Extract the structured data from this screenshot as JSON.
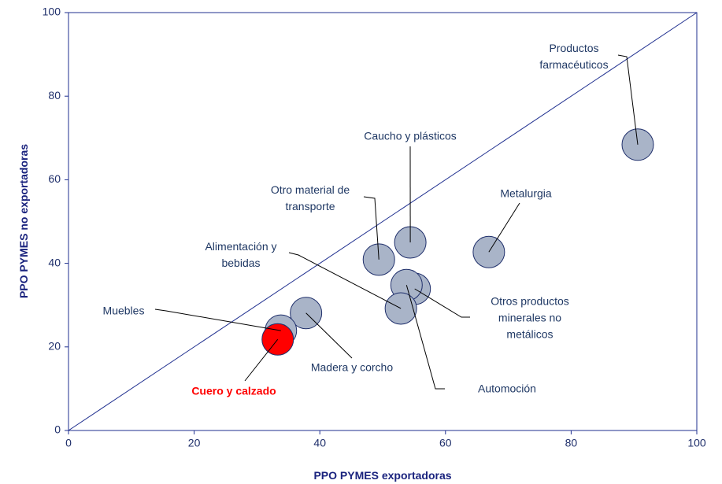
{
  "chart_data": {
    "type": "scatter",
    "x_label": "PPO PYMES exportadoras",
    "y_label": "PPO PYMES no exportadoras",
    "xlim": [
      0,
      100
    ],
    "ylim": [
      0,
      100
    ],
    "xticks": [
      0,
      20,
      40,
      60,
      80,
      100
    ],
    "yticks": [
      0,
      20,
      40,
      60,
      80,
      100
    ],
    "points": [
      {
        "name": "Productos farmacéuticos",
        "x": 90.6,
        "y": 68.4,
        "color": "#a9b4c8"
      },
      {
        "name": "Caucho y plásticos",
        "x": 54.4,
        "y": 45.0,
        "color": "#a9b4c8"
      },
      {
        "name": "Metalurgia",
        "x": 66.9,
        "y": 42.7,
        "color": "#a9b4c8"
      },
      {
        "name": "Otro material de transporte",
        "x": 49.4,
        "y": 40.9,
        "color": "#a9b4c8"
      },
      {
        "name": "Otros productos minerales no metálicos",
        "x": 55.1,
        "y": 33.9,
        "color": "#a9b4c8"
      },
      {
        "name": "Automoción",
        "x": 53.8,
        "y": 34.8,
        "color": "#a9b4c8"
      },
      {
        "name": "Alimentación y bebidas",
        "x": 52.9,
        "y": 29.2,
        "color": "#a9b4c8"
      },
      {
        "name": "Madera y corcho",
        "x": 37.8,
        "y": 28.1,
        "color": "#a9b4c8"
      },
      {
        "name": "Muebles",
        "x": 33.8,
        "y": 23.9,
        "color": "#a9b4c8"
      },
      {
        "name": "Cuero y calzado",
        "x": 33.3,
        "y": 21.8,
        "color": "#ff0000"
      }
    ]
  }
}
